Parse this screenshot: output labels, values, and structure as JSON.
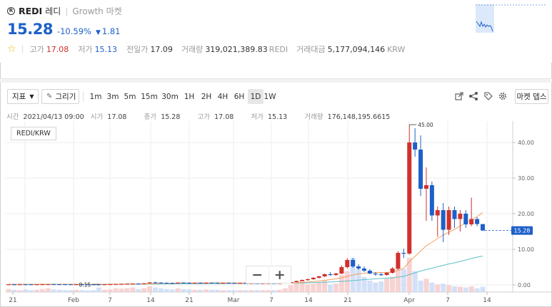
{
  "header": {
    "coin_icon": "R",
    "symbol": "REDI",
    "name_kr": "레디",
    "market": "Growth 마켓",
    "price": "15.28",
    "change_rate": "-10.59%",
    "change_arrow": "▼",
    "change_amount": "1.81",
    "high_label": "고가",
    "high_value": "17.08",
    "low_label": "저가",
    "low_value": "15.13",
    "prev_label": "전일가",
    "prev_value": "17.09",
    "vol_label": "거래량",
    "vol_value": "319,021,389.83",
    "vol_unit": "REDI",
    "amount_label": "거래대금",
    "amount_value": "5,177,094,146",
    "amount_unit": "KRW"
  },
  "toolbar": {
    "indicator_label": "지표",
    "draw_label": "그리기",
    "intervals": [
      "1m",
      "3m",
      "5m",
      "15m",
      "30m",
      "1H",
      "2H",
      "4H",
      "6H",
      "1D",
      "1W"
    ],
    "active_interval": "1D",
    "market_depth_label": "마켓 뎁스",
    "icons": [
      "share-icon",
      "nodes-icon",
      "tag-icon",
      "settings-icon"
    ]
  },
  "ohlc": {
    "time_label": "시간",
    "time_value": "2021/04/13 09:00",
    "open_label": "시가",
    "open_value": "17.08",
    "close_label": "종가",
    "close_value": "15.28",
    "high_label": "고가",
    "high_value": "17.08",
    "low_label": "저가",
    "low_value": "15.13",
    "volume_label": "거래량",
    "volume_value": "176,148,195.6615"
  },
  "pair_label": "REDI/KRW",
  "zoom": {
    "minus": "−",
    "plus": "+"
  },
  "colors": {
    "up": "#d0312d",
    "down": "#1d60c9",
    "ma_short": "#f0a060",
    "ma_long": "#5fc0c8"
  },
  "chart_data": {
    "type": "candlestick",
    "y_ticks": [
      "40.00",
      "30.00",
      "20.00",
      "10.00",
      "0.00"
    ],
    "ylim": [
      0,
      45
    ],
    "x_ticks": [
      "21",
      "Feb",
      "7",
      "14",
      "21",
      "Mar",
      "7",
      "14",
      "21",
      "Apr",
      "7",
      "14"
    ],
    "current_price_label": "15.28",
    "max_label": "45.00",
    "min_label": "0.15",
    "candles": [
      {
        "o": 0.16,
        "h": 0.2,
        "l": 0.15,
        "c": 0.18
      },
      {
        "o": 0.18,
        "h": 0.22,
        "l": 0.16,
        "c": 0.17
      },
      {
        "o": 0.17,
        "h": 0.2,
        "l": 0.15,
        "c": 0.19
      },
      {
        "o": 0.19,
        "h": 0.22,
        "l": 0.17,
        "c": 0.18
      },
      {
        "o": 0.18,
        "h": 0.2,
        "l": 0.16,
        "c": 0.17
      },
      {
        "o": 0.17,
        "h": 0.2,
        "l": 0.15,
        "c": 0.19
      },
      {
        "o": 0.19,
        "h": 0.24,
        "l": 0.18,
        "c": 0.2
      },
      {
        "o": 0.2,
        "h": 0.24,
        "l": 0.18,
        "c": 0.22
      },
      {
        "o": 0.22,
        "h": 0.24,
        "l": 0.2,
        "c": 0.21
      },
      {
        "o": 0.21,
        "h": 0.23,
        "l": 0.19,
        "c": 0.2
      },
      {
        "o": 0.2,
        "h": 0.22,
        "l": 0.18,
        "c": 0.19
      },
      {
        "o": 0.19,
        "h": 0.21,
        "l": 0.17,
        "c": 0.18
      },
      {
        "o": 0.18,
        "h": 0.2,
        "l": 0.16,
        "c": 0.19
      },
      {
        "o": 0.19,
        "h": 0.21,
        "l": 0.17,
        "c": 0.18
      },
      {
        "o": 0.18,
        "h": 0.2,
        "l": 0.15,
        "c": 0.17
      },
      {
        "o": 0.17,
        "h": 0.19,
        "l": 0.15,
        "c": 0.16
      },
      {
        "o": 0.16,
        "h": 0.25,
        "l": 0.15,
        "c": 0.15
      },
      {
        "o": 0.15,
        "h": 0.2,
        "l": 0.15,
        "c": 0.18
      },
      {
        "o": 0.18,
        "h": 0.25,
        "l": 0.17,
        "c": 0.22
      },
      {
        "o": 0.22,
        "h": 0.3,
        "l": 0.2,
        "c": 0.28
      },
      {
        "o": 0.28,
        "h": 0.35,
        "l": 0.25,
        "c": 0.3
      },
      {
        "o": 0.3,
        "h": 0.4,
        "l": 0.28,
        "c": 0.35
      },
      {
        "o": 0.35,
        "h": 0.45,
        "l": 0.32,
        "c": 0.4
      },
      {
        "o": 0.4,
        "h": 0.42,
        "l": 0.35,
        "c": 0.38
      },
      {
        "o": 0.38,
        "h": 0.5,
        "l": 0.36,
        "c": 0.45
      },
      {
        "o": 0.45,
        "h": 0.8,
        "l": 0.42,
        "c": 0.7
      },
      {
        "o": 0.7,
        "h": 0.9,
        "l": 0.6,
        "c": 0.65
      },
      {
        "o": 0.65,
        "h": 0.75,
        "l": 0.55,
        "c": 0.6
      },
      {
        "o": 0.6,
        "h": 0.7,
        "l": 0.5,
        "c": 0.55
      },
      {
        "o": 0.55,
        "h": 0.65,
        "l": 0.45,
        "c": 0.5
      },
      {
        "o": 0.5,
        "h": 0.7,
        "l": 0.48,
        "c": 0.65
      },
      {
        "o": 0.65,
        "h": 0.75,
        "l": 0.55,
        "c": 0.6
      },
      {
        "o": 0.6,
        "h": 0.7,
        "l": 0.5,
        "c": 0.55
      },
      {
        "o": 0.55,
        "h": 0.65,
        "l": 0.48,
        "c": 0.6
      },
      {
        "o": 0.6,
        "h": 0.7,
        "l": 0.52,
        "c": 0.58
      },
      {
        "o": 0.58,
        "h": 0.68,
        "l": 0.5,
        "c": 0.62
      },
      {
        "o": 0.62,
        "h": 0.7,
        "l": 0.55,
        "c": 0.6
      },
      {
        "o": 0.6,
        "h": 0.68,
        "l": 0.52,
        "c": 0.56
      },
      {
        "o": 0.56,
        "h": 0.62,
        "l": 0.5,
        "c": 0.58
      },
      {
        "o": 0.58,
        "h": 0.65,
        "l": 0.52,
        "c": 0.55
      },
      {
        "o": 0.55,
        "h": 0.62,
        "l": 0.48,
        "c": 0.52
      },
      {
        "o": 0.52,
        "h": 0.6,
        "l": 0.46,
        "c": 0.55
      },
      {
        "o": 0.55,
        "h": 0.6,
        "l": 0.48,
        "c": 0.5
      },
      {
        "o": 0.5,
        "h": 0.58,
        "l": 0.45,
        "c": 0.53
      },
      {
        "o": 0.53,
        "h": 0.6,
        "l": 0.47,
        "c": 0.5
      },
      {
        "o": 0.5,
        "h": 0.56,
        "l": 0.45,
        "c": 0.52
      },
      {
        "o": 0.52,
        "h": 0.58,
        "l": 0.46,
        "c": 0.54
      },
      {
        "o": 0.54,
        "h": 0.6,
        "l": 0.48,
        "c": 0.5
      },
      {
        "o": 0.5,
        "h": 0.58,
        "l": 0.45,
        "c": 0.55
      },
      {
        "o": 0.55,
        "h": 0.7,
        "l": 0.5,
        "c": 0.65
      },
      {
        "o": 0.65,
        "h": 0.85,
        "l": 0.6,
        "c": 0.8
      },
      {
        "o": 0.8,
        "h": 1.2,
        "l": 0.7,
        "c": 1.1
      },
      {
        "o": 1.1,
        "h": 1.5,
        "l": 1.0,
        "c": 1.4
      },
      {
        "o": 1.4,
        "h": 1.8,
        "l": 1.2,
        "c": 1.6
      },
      {
        "o": 1.6,
        "h": 2.2,
        "l": 1.4,
        "c": 2.0
      },
      {
        "o": 2.0,
        "h": 2.6,
        "l": 1.8,
        "c": 2.4
      },
      {
        "o": 2.4,
        "h": 3.2,
        "l": 2.2,
        "c": 3.0
      },
      {
        "o": 3.0,
        "h": 3.6,
        "l": 2.6,
        "c": 2.8
      },
      {
        "o": 2.8,
        "h": 3.4,
        "l": 2.5,
        "c": 3.2
      },
      {
        "o": 3.2,
        "h": 5.5,
        "l": 3.0,
        "c": 5.0
      },
      {
        "o": 5.0,
        "h": 7.5,
        "l": 4.6,
        "c": 7.0
      },
      {
        "o": 7.0,
        "h": 7.6,
        "l": 4.8,
        "c": 5.2
      },
      {
        "o": 5.2,
        "h": 5.8,
        "l": 4.2,
        "c": 4.6
      },
      {
        "o": 4.6,
        "h": 5.2,
        "l": 3.6,
        "c": 4.0
      },
      {
        "o": 4.0,
        "h": 4.4,
        "l": 3.0,
        "c": 3.2
      },
      {
        "o": 3.2,
        "h": 3.6,
        "l": 2.6,
        "c": 3.0
      },
      {
        "o": 3.0,
        "h": 3.4,
        "l": 2.5,
        "c": 2.8
      },
      {
        "o": 2.8,
        "h": 3.6,
        "l": 2.6,
        "c": 3.4
      },
      {
        "o": 3.4,
        "h": 5.0,
        "l": 3.2,
        "c": 4.6
      },
      {
        "o": 4.6,
        "h": 9.5,
        "l": 4.2,
        "c": 9.0
      },
      {
        "o": 9.0,
        "h": 10.2,
        "l": 7.5,
        "c": 8.8
      },
      {
        "o": 8.8,
        "h": 45.0,
        "l": 8.5,
        "c": 40.0
      },
      {
        "o": 40.0,
        "h": 44.0,
        "l": 36.0,
        "c": 38.0
      },
      {
        "o": 38.0,
        "h": 42.0,
        "l": 25.0,
        "c": 27.0
      },
      {
        "o": 27.0,
        "h": 33.0,
        "l": 18.0,
        "c": 28.0
      },
      {
        "o": 28.0,
        "h": 29.0,
        "l": 18.0,
        "c": 19.5
      },
      {
        "o": 19.5,
        "h": 22.0,
        "l": 13.5,
        "c": 21.0
      },
      {
        "o": 21.0,
        "h": 23.0,
        "l": 12.0,
        "c": 15.5
      },
      {
        "o": 15.5,
        "h": 22.0,
        "l": 14.0,
        "c": 21.0
      },
      {
        "o": 21.0,
        "h": 22.0,
        "l": 16.0,
        "c": 18.5
      },
      {
        "o": 18.5,
        "h": 21.0,
        "l": 15.0,
        "c": 20.0
      },
      {
        "o": 20.0,
        "h": 21.0,
        "l": 16.0,
        "c": 17.0
      },
      {
        "o": 17.0,
        "h": 24.5,
        "l": 16.5,
        "c": 18.5
      },
      {
        "o": 18.5,
        "h": 19.0,
        "l": 16.5,
        "c": 17.09
      },
      {
        "o": 17.08,
        "h": 17.08,
        "l": 15.13,
        "c": 15.28
      }
    ],
    "ma_short": [
      0.18,
      0.18,
      0.18,
      0.18,
      0.18,
      0.18,
      0.19,
      0.19,
      0.19,
      0.2,
      0.2,
      0.2,
      0.19,
      0.19,
      0.19,
      0.18,
      0.18,
      0.18,
      0.18,
      0.19,
      0.2,
      0.22,
      0.24,
      0.26,
      0.28,
      0.32,
      0.38,
      0.42,
      0.46,
      0.5,
      0.53,
      0.55,
      0.57,
      0.58,
      0.58,
      0.59,
      0.59,
      0.59,
      0.58,
      0.58,
      0.57,
      0.56,
      0.55,
      0.54,
      0.53,
      0.53,
      0.53,
      0.52,
      0.52,
      0.54,
      0.57,
      0.62,
      0.7,
      0.8,
      0.95,
      1.1,
      1.3,
      1.5,
      1.7,
      2.0,
      2.4,
      2.8,
      3.1,
      3.3,
      3.4,
      3.5,
      3.5,
      3.5,
      3.6,
      4.1,
      4.6,
      6.5,
      8.0,
      9.5,
      11.0,
      12.0,
      13.0,
      14.0,
      14.8,
      15.6,
      16.5,
      17.4,
      18.3,
      19.2,
      20.3
    ],
    "ma_long": [
      0.2,
      0.2,
      0.2,
      0.2,
      0.2,
      0.2,
      0.2,
      0.2,
      0.2,
      0.2,
      0.2,
      0.2,
      0.2,
      0.2,
      0.2,
      0.2,
      0.2,
      0.2,
      0.2,
      0.2,
      0.21,
      0.21,
      0.22,
      0.22,
      0.23,
      0.24,
      0.25,
      0.26,
      0.27,
      0.28,
      0.3,
      0.31,
      0.33,
      0.34,
      0.35,
      0.36,
      0.37,
      0.38,
      0.39,
      0.4,
      0.41,
      0.42,
      0.43,
      0.44,
      0.45,
      0.46,
      0.47,
      0.48,
      0.49,
      0.5,
      0.51,
      0.53,
      0.56,
      0.6,
      0.65,
      0.7,
      0.76,
      0.82,
      0.9,
      1.0,
      1.1,
      1.2,
      1.35,
      1.5,
      1.6,
      1.7,
      1.8,
      1.9,
      2.0,
      2.2,
      2.4,
      2.9,
      3.4,
      3.9,
      4.3,
      4.7,
      5.1,
      5.5,
      5.9,
      6.2,
      6.6,
      7.0,
      7.4,
      7.8,
      8.1
    ],
    "volumes": [
      0.08,
      0.06,
      0.05,
      0.07,
      0.05,
      0.06,
      0.08,
      0.1,
      0.07,
      0.06,
      0.05,
      0.05,
      0.06,
      0.05,
      0.04,
      0.05,
      0.12,
      0.06,
      0.07,
      0.1,
      0.09,
      0.1,
      0.12,
      0.08,
      0.1,
      0.15,
      0.12,
      0.1,
      0.08,
      0.07,
      0.1,
      0.08,
      0.07,
      0.06,
      0.06,
      0.07,
      0.06,
      0.06,
      0.05,
      0.05,
      0.05,
      0.05,
      0.05,
      0.05,
      0.05,
      0.05,
      0.05,
      0.05,
      0.06,
      0.1,
      0.18,
      0.25,
      0.3,
      0.2,
      0.22,
      0.26,
      0.3,
      0.2,
      0.22,
      0.45,
      0.55,
      0.9,
      0.6,
      0.4,
      0.3,
      0.25,
      0.28,
      0.35,
      0.4,
      0.65,
      0.6,
      0.9,
      0.55,
      0.3,
      0.35,
      0.25,
      0.2,
      0.22,
      0.18,
      0.15,
      0.14,
      0.12,
      0.15,
      0.1,
      0.14
    ]
  }
}
